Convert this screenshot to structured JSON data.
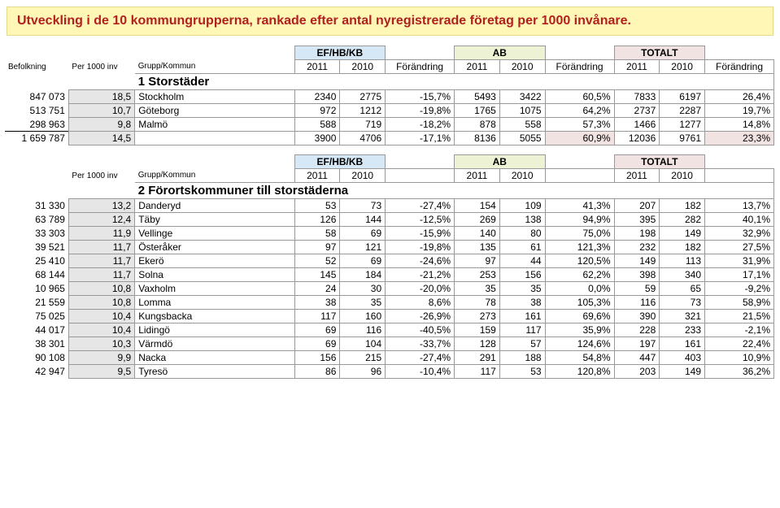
{
  "title": "Utveckling i de 10 kommungrupperna, rankade efter antal nyregistrerade företag per 1000 invånare.",
  "headers": {
    "ef": "EF/HB/KB",
    "ab": "AB",
    "tot": "TOTALT",
    "befolkning": "Befolkning",
    "per1000": "Per 1000 inv",
    "grupp": "Grupp/Kommun",
    "y2011": "2011",
    "y2010": "2010",
    "forandring": "Förändring"
  },
  "groups": [
    {
      "title": "1 Storstäder",
      "rows": [
        {
          "pop": "847 073",
          "rate": "18,5",
          "name": "Stockholm",
          "ef2011": "2340",
          "ef2010": "2775",
          "efp": "-15,7%",
          "ab2011": "5493",
          "ab2010": "3422",
          "abp": "60,5%",
          "t2011": "7833",
          "t2010": "6197",
          "tp": "26,4%"
        },
        {
          "pop": "513 751",
          "rate": "10,7",
          "name": "Göteborg",
          "ef2011": "972",
          "ef2010": "1212",
          "efp": "-19,8%",
          "ab2011": "1765",
          "ab2010": "1075",
          "abp": "64,2%",
          "t2011": "2737",
          "t2010": "2287",
          "tp": "19,7%"
        },
        {
          "pop": "298 963",
          "rate": "9,8",
          "name": "Malmö",
          "ef2011": "588",
          "ef2010": "719",
          "efp": "-18,2%",
          "ab2011": "878",
          "ab2010": "558",
          "abp": "57,3%",
          "t2011": "1466",
          "t2010": "1277",
          "tp": "14,8%"
        }
      ],
      "total": {
        "pop": "1 659 787",
        "rate": "14,5",
        "ef2011": "3900",
        "ef2010": "4706",
        "efp": "-17,1%",
        "ab2011": "8136",
        "ab2010": "5055",
        "abp": "60,9%",
        "t2011": "12036",
        "t2010": "9761",
        "tp": "23,3%"
      }
    },
    {
      "title": "2 Förortskommuner till storstäderna",
      "rows": [
        {
          "pop": "31 330",
          "rate": "13,2",
          "name": "Danderyd",
          "ef2011": "53",
          "ef2010": "73",
          "efp": "-27,4%",
          "ab2011": "154",
          "ab2010": "109",
          "abp": "41,3%",
          "t2011": "207",
          "t2010": "182",
          "tp": "13,7%"
        },
        {
          "pop": "63 789",
          "rate": "12,4",
          "name": "Täby",
          "ef2011": "126",
          "ef2010": "144",
          "efp": "-12,5%",
          "ab2011": "269",
          "ab2010": "138",
          "abp": "94,9%",
          "t2011": "395",
          "t2010": "282",
          "tp": "40,1%"
        },
        {
          "pop": "33 303",
          "rate": "11,9",
          "name": "Vellinge",
          "ef2011": "58",
          "ef2010": "69",
          "efp": "-15,9%",
          "ab2011": "140",
          "ab2010": "80",
          "abp": "75,0%",
          "t2011": "198",
          "t2010": "149",
          "tp": "32,9%"
        },
        {
          "pop": "39 521",
          "rate": "11,7",
          "name": "Österåker",
          "ef2011": "97",
          "ef2010": "121",
          "efp": "-19,8%",
          "ab2011": "135",
          "ab2010": "61",
          "abp": "121,3%",
          "t2011": "232",
          "t2010": "182",
          "tp": "27,5%"
        },
        {
          "pop": "25 410",
          "rate": "11,7",
          "name": "Ekerö",
          "ef2011": "52",
          "ef2010": "69",
          "efp": "-24,6%",
          "ab2011": "97",
          "ab2010": "44",
          "abp": "120,5%",
          "t2011": "149",
          "t2010": "113",
          "tp": "31,9%"
        },
        {
          "pop": "68 144",
          "rate": "11,7",
          "name": "Solna",
          "ef2011": "145",
          "ef2010": "184",
          "efp": "-21,2%",
          "ab2011": "253",
          "ab2010": "156",
          "abp": "62,2%",
          "t2011": "398",
          "t2010": "340",
          "tp": "17,1%"
        },
        {
          "pop": "10 965",
          "rate": "10,8",
          "name": "Vaxholm",
          "ef2011": "24",
          "ef2010": "30",
          "efp": "-20,0%",
          "ab2011": "35",
          "ab2010": "35",
          "abp": "0,0%",
          "t2011": "59",
          "t2010": "65",
          "tp": "-9,2%"
        },
        {
          "pop": "21 559",
          "rate": "10,8",
          "name": "Lomma",
          "ef2011": "38",
          "ef2010": "35",
          "efp": "8,6%",
          "ab2011": "78",
          "ab2010": "38",
          "abp": "105,3%",
          "t2011": "116",
          "t2010": "73",
          "tp": "58,9%"
        },
        {
          "pop": "75 025",
          "rate": "10,4",
          "name": "Kungsbacka",
          "ef2011": "117",
          "ef2010": "160",
          "efp": "-26,9%",
          "ab2011": "273",
          "ab2010": "161",
          "abp": "69,6%",
          "t2011": "390",
          "t2010": "321",
          "tp": "21,5%"
        },
        {
          "pop": "44 017",
          "rate": "10,4",
          "name": "Lidingö",
          "ef2011": "69",
          "ef2010": "116",
          "efp": "-40,5%",
          "ab2011": "159",
          "ab2010": "117",
          "abp": "35,9%",
          "t2011": "228",
          "t2010": "233",
          "tp": "-2,1%"
        },
        {
          "pop": "38 301",
          "rate": "10,3",
          "name": "Värmdö",
          "ef2011": "69",
          "ef2010": "104",
          "efp": "-33,7%",
          "ab2011": "128",
          "ab2010": "57",
          "abp": "124,6%",
          "t2011": "197",
          "t2010": "161",
          "tp": "22,4%"
        },
        {
          "pop": "90 108",
          "rate": "9,9",
          "name": "Nacka",
          "ef2011": "156",
          "ef2010": "215",
          "efp": "-27,4%",
          "ab2011": "291",
          "ab2010": "188",
          "abp": "54,8%",
          "t2011": "447",
          "t2010": "403",
          "tp": "10,9%"
        },
        {
          "pop": "42 947",
          "rate": "9,5",
          "name": "Tyresö",
          "ef2011": "86",
          "ef2010": "96",
          "efp": "-10,4%",
          "ab2011": "117",
          "ab2010": "53",
          "abp": "120,8%",
          "t2011": "203",
          "t2010": "149",
          "tp": "36,2%"
        }
      ]
    }
  ]
}
